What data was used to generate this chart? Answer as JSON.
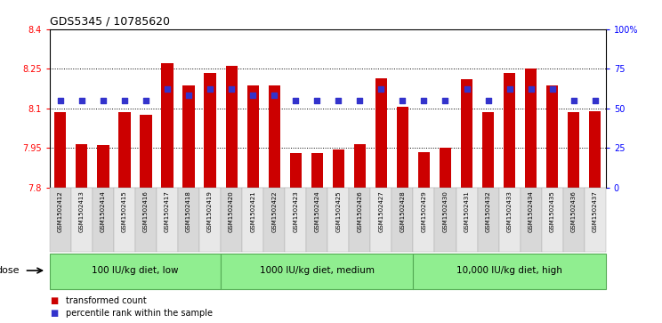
{
  "title": "GDS5345 / 10785620",
  "samples": [
    "GSM1502412",
    "GSM1502413",
    "GSM1502414",
    "GSM1502415",
    "GSM1502416",
    "GSM1502417",
    "GSM1502418",
    "GSM1502419",
    "GSM1502420",
    "GSM1502421",
    "GSM1502422",
    "GSM1502423",
    "GSM1502424",
    "GSM1502425",
    "GSM1502426",
    "GSM1502427",
    "GSM1502428",
    "GSM1502429",
    "GSM1502430",
    "GSM1502431",
    "GSM1502432",
    "GSM1502433",
    "GSM1502434",
    "GSM1502435",
    "GSM1502436",
    "GSM1502437"
  ],
  "bar_values": [
    8.085,
    7.965,
    7.96,
    8.085,
    8.075,
    8.27,
    8.185,
    8.235,
    8.26,
    8.185,
    8.185,
    7.93,
    7.93,
    7.945,
    7.965,
    8.215,
    8.105,
    7.935,
    7.95,
    8.21,
    8.085,
    8.235,
    8.25,
    8.185,
    8.085,
    8.09
  ],
  "percentile_values": [
    55,
    55,
    55,
    55,
    55,
    62,
    58,
    62,
    62,
    58,
    58,
    55,
    55,
    55,
    55,
    62,
    55,
    55,
    55,
    62,
    55,
    62,
    62,
    62,
    55,
    55
  ],
  "bar_color": "#cc0000",
  "dot_color": "#3333cc",
  "ylim_left": [
    7.8,
    8.4
  ],
  "ylim_right": [
    0,
    100
  ],
  "yticks_left": [
    7.8,
    7.95,
    8.1,
    8.25,
    8.4
  ],
  "yticks_right": [
    0,
    25,
    50,
    75,
    100
  ],
  "ytick_labels_left": [
    "7.8",
    "7.95",
    "8.1",
    "8.25",
    "8.4"
  ],
  "ytick_labels_right": [
    "0",
    "25",
    "50",
    "75",
    "100%"
  ],
  "hlines": [
    7.95,
    8.1,
    8.25
  ],
  "groups": [
    {
      "label": "100 IU/kg diet, low",
      "start": 0,
      "end": 8
    },
    {
      "label": "1000 IU/kg diet, medium",
      "start": 8,
      "end": 17
    },
    {
      "label": "10,000 IU/kg diet, high",
      "start": 17,
      "end": 26
    }
  ],
  "group_color": "#90ee90",
  "group_edge_color": "#55aa55",
  "dose_label": "dose",
  "legend_items": [
    {
      "color": "#cc0000",
      "label": "transformed count"
    },
    {
      "color": "#3333cc",
      "label": "percentile rank within the sample"
    }
  ],
  "bar_width": 0.55,
  "col_bg_even": "#d8d8d8",
  "col_bg_odd": "#e8e8e8",
  "plot_bg": "#ffffff",
  "tick_label_bg": "#cccccc"
}
